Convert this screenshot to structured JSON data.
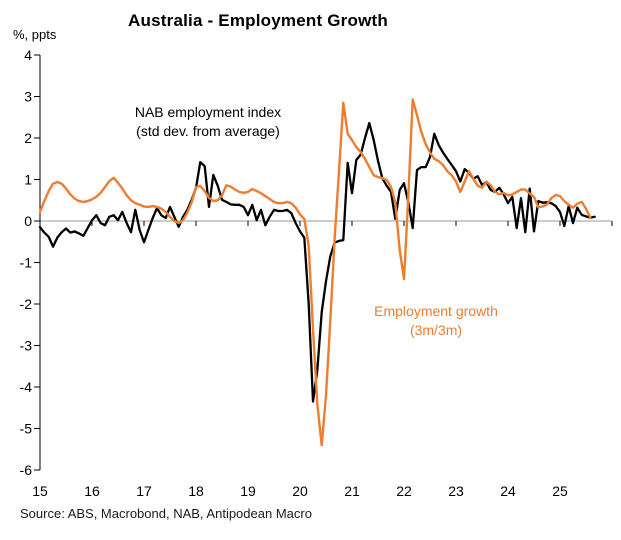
{
  "chart_data": {
    "type": "line",
    "title": "Australia - Employment Growth",
    "ylabel": "%, ppts",
    "source_note": "Source: ABS, Macrobond, NAB, Antipodean Macro",
    "frequency": "monthly",
    "start_month": "2015-01",
    "ylim": [
      -6,
      4
    ],
    "y_ticks": [
      4,
      3,
      2,
      1,
      0,
      -1,
      -2,
      -3,
      -4,
      -5,
      -6
    ],
    "x_tick_labels": [
      "15",
      "16",
      "17",
      "18",
      "19",
      "20",
      "21",
      "22",
      "23",
      "24",
      "25"
    ],
    "grid": "horizontal zero line only, x ticks drawn on zero line",
    "legend_position": "inline text annotations",
    "colors": {
      "nab_index": "#000000",
      "employment_growth": "#ED7D31",
      "zero_line": "#999999"
    },
    "series": [
      {
        "name": "NAB employment index (std dev. from average)",
        "color": "#000000",
        "values": [
          -0.15,
          -0.28,
          -0.38,
          -0.62,
          -0.4,
          -0.27,
          -0.18,
          -0.28,
          -0.25,
          -0.3,
          -0.36,
          -0.17,
          0.02,
          0.14,
          -0.05,
          -0.1,
          0.1,
          0.14,
          0.02,
          0.22,
          -0.05,
          -0.27,
          0.27,
          -0.22,
          -0.51,
          -0.22,
          0.07,
          0.31,
          0.14,
          0.07,
          0.34,
          0.1,
          -0.14,
          0.1,
          0.27,
          0.51,
          0.8,
          1.42,
          1.32,
          0.34,
          1.11,
          0.85,
          0.51,
          0.46,
          0.4,
          0.39,
          0.39,
          0.34,
          0.14,
          0.39,
          0.02,
          0.27,
          -0.1,
          0.1,
          0.27,
          0.24,
          0.24,
          0.27,
          0.19,
          -0.05,
          -0.25,
          -0.4,
          -2.0,
          -4.35,
          -3.6,
          -2.2,
          -1.45,
          -0.85,
          -0.52,
          -0.48,
          -0.46,
          1.4,
          0.67,
          1.47,
          1.6,
          2.0,
          2.36,
          1.95,
          1.45,
          1.03,
          0.85,
          0.7,
          0.05,
          0.75,
          0.91,
          0.45,
          -0.17,
          1.23,
          1.3,
          1.3,
          1.54,
          2.1,
          1.83,
          1.65,
          1.5,
          1.35,
          1.2,
          0.95,
          1.25,
          1.16,
          1.02,
          1.08,
          0.87,
          0.94,
          0.75,
          0.7,
          0.8,
          0.64,
          0.43,
          0.58,
          -0.17,
          0.55,
          -0.27,
          0.78,
          -0.25,
          0.48,
          0.44,
          0.45,
          0.43,
          0.36,
          0.22,
          -0.12,
          0.36,
          -0.05,
          0.32,
          0.15,
          0.11,
          0.08,
          0.1
        ]
      },
      {
        "name": "Employment growth (3m/3m)",
        "color": "#ED7D31",
        "values": [
          0.22,
          0.48,
          0.72,
          0.9,
          0.94,
          0.9,
          0.78,
          0.64,
          0.54,
          0.48,
          0.46,
          0.48,
          0.52,
          0.58,
          0.68,
          0.82,
          0.96,
          1.04,
          0.92,
          0.78,
          0.62,
          0.5,
          0.43,
          0.39,
          0.35,
          0.34,
          0.36,
          0.34,
          0.3,
          0.22,
          0.1,
          0.0,
          -0.05,
          0.02,
          0.2,
          0.45,
          0.82,
          0.84,
          0.72,
          0.56,
          0.48,
          0.5,
          0.62,
          0.86,
          0.83,
          0.76,
          0.7,
          0.68,
          0.7,
          0.77,
          0.72,
          0.67,
          0.6,
          0.53,
          0.46,
          0.43,
          0.43,
          0.46,
          0.43,
          0.32,
          0.16,
          0.05,
          -0.6,
          -2.6,
          -4.4,
          -5.4,
          -4.2,
          -2.4,
          -0.4,
          1.2,
          2.85,
          2.1,
          1.95,
          1.78,
          1.66,
          1.5,
          1.3,
          1.1,
          1.06,
          1.03,
          0.99,
          0.82,
          0.45,
          -0.7,
          -1.4,
          0.6,
          2.93,
          2.55,
          2.15,
          1.85,
          1.65,
          1.5,
          1.44,
          1.35,
          1.2,
          1.1,
          0.95,
          0.7,
          0.95,
          1.2,
          1.02,
          0.85,
          0.8,
          0.95,
          0.86,
          0.7,
          0.64,
          0.68,
          0.62,
          0.64,
          0.7,
          0.76,
          0.76,
          0.66,
          0.58,
          0.33,
          0.35,
          0.4,
          0.55,
          0.63,
          0.6,
          0.48,
          0.39,
          0.32,
          0.42,
          0.46,
          0.3,
          0.08
        ]
      }
    ],
    "annotations": [
      {
        "lines": [
          "NAB employment index",
          "(std dev. from average)"
        ],
        "color": "#000000"
      },
      {
        "lines": [
          "Employment growth",
          "(3m/3m)"
        ],
        "color": "#ED7D31"
      }
    ]
  }
}
